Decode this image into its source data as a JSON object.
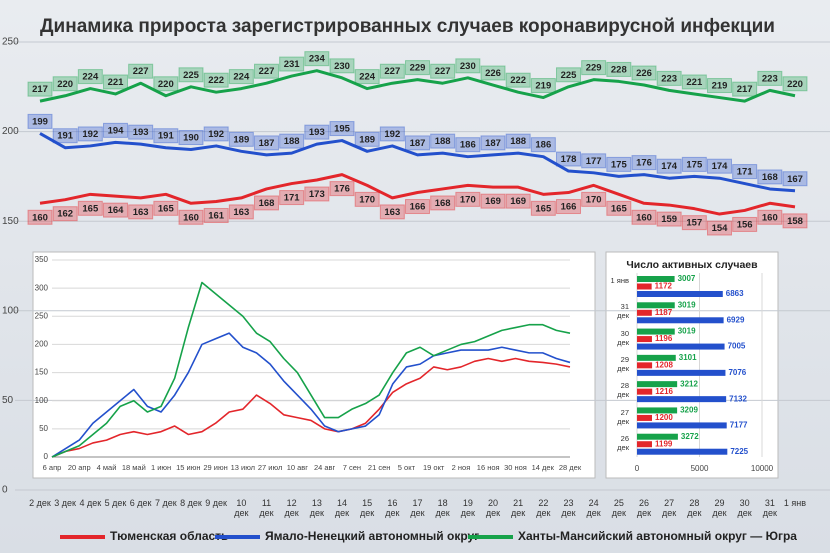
{
  "chart_data": [
    {
      "type": "line",
      "title": "Динамика прироста зарегистрированных случаев коронавирусной инфекции",
      "categories": [
        "2 дек",
        "3 дек",
        "4 дек",
        "5 дек",
        "6 дек",
        "7 дек",
        "8 дек",
        "9 дек",
        "10 дек",
        "11 дек",
        "12 дек",
        "13 дек",
        "14 дек",
        "15 дек",
        "16 дек",
        "17 дек",
        "18 дек",
        "19 дек",
        "20 дек",
        "21 дек",
        "22 дек",
        "23 дек",
        "24 дек",
        "25 дек",
        "26 дек",
        "27 дек",
        "28 дек",
        "29 дек",
        "30 дек",
        "31 дек",
        "1 янв"
      ],
      "series": [
        {
          "name": "Тюменская область",
          "color": "#e3262b",
          "values": [
            160,
            162,
            165,
            164,
            163,
            165,
            160,
            161,
            163,
            168,
            171,
            173,
            176,
            170,
            163,
            166,
            168,
            170,
            169,
            169,
            165,
            166,
            170,
            165,
            160,
            159,
            157,
            154,
            156,
            160,
            158
          ]
        },
        {
          "name": "Ямало-Ненецкий автономный округ",
          "color": "#2350cc",
          "values": [
            199,
            191,
            192,
            194,
            193,
            191,
            190,
            192,
            189,
            187,
            188,
            193,
            195,
            189,
            192,
            187,
            188,
            186,
            187,
            188,
            186,
            178,
            177,
            175,
            176,
            174,
            175,
            174,
            171,
            168,
            167
          ]
        },
        {
          "name": "Ханты-Мансийский автономный округ — Югра",
          "color": "#16a24a",
          "values": [
            217,
            220,
            224,
            221,
            227,
            220,
            225,
            222,
            224,
            227,
            231,
            234,
            230,
            224,
            227,
            229,
            227,
            230,
            226,
            222,
            219,
            225,
            229,
            228,
            226,
            223,
            221,
            219,
            217,
            223,
            220
          ]
        }
      ],
      "ylim": [
        0,
        250
      ],
      "yticks": [
        0,
        50,
        100,
        150,
        200,
        250
      ],
      "grid": true,
      "legend": "bottom"
    },
    {
      "type": "line",
      "categories": [
        "6 апр",
        null,
        "20 апр",
        null,
        "4 май",
        null,
        "18 май",
        null,
        "1 июн",
        null,
        "15 июн",
        null,
        "29 июн",
        null,
        "13 июл",
        null,
        "27 июл",
        null,
        "10 авг",
        null,
        "24 авг",
        null,
        "7 сен",
        null,
        "21 сен",
        null,
        "5 окт",
        null,
        "19 окт",
        null,
        "2 ноя",
        null,
        "16 ноя",
        null,
        "30 ноя",
        null,
        "14 дек",
        null,
        "28 дек"
      ],
      "series": [
        {
          "color": "#e3262b",
          "values": [
            0,
            10,
            15,
            25,
            30,
            40,
            45,
            40,
            45,
            55,
            40,
            45,
            60,
            80,
            85,
            110,
            95,
            75,
            70,
            65,
            50,
            45,
            50,
            60,
            85,
            115,
            130,
            140,
            160,
            155,
            160,
            170,
            175,
            170,
            175,
            170,
            168,
            165,
            160
          ]
        },
        {
          "color": "#2350cc",
          "values": [
            0,
            15,
            30,
            60,
            80,
            100,
            120,
            90,
            80,
            110,
            150,
            200,
            210,
            220,
            195,
            185,
            165,
            135,
            110,
            85,
            55,
            45,
            50,
            55,
            75,
            130,
            160,
            165,
            180,
            185,
            190,
            190,
            190,
            195,
            190,
            185,
            185,
            175,
            168
          ]
        },
        {
          "color": "#16a24a",
          "values": [
            0,
            10,
            20,
            40,
            60,
            90,
            100,
            80,
            90,
            140,
            230,
            310,
            290,
            270,
            250,
            220,
            205,
            175,
            150,
            110,
            70,
            70,
            85,
            95,
            110,
            150,
            185,
            195,
            180,
            190,
            200,
            205,
            215,
            225,
            230,
            235,
            235,
            225,
            220
          ]
        }
      ],
      "ylim": [
        0,
        350
      ],
      "yticks": [
        0,
        50,
        100,
        150,
        200,
        250,
        300,
        350
      ],
      "grid": true
    },
    {
      "type": "bar",
      "orientation": "horizontal",
      "title": "Число активных случаев",
      "categories": [
        "1 янв",
        "31 дек",
        "30 дек",
        "29 дек",
        "28 дек",
        "27 дек",
        "26 дек"
      ],
      "series": [
        {
          "color": "#16a24a",
          "values": [
            3007,
            3019,
            3019,
            3101,
            3212,
            3209,
            3272
          ]
        },
        {
          "color": "#e3262b",
          "values": [
            1172,
            1187,
            1196,
            1208,
            1216,
            1200,
            1199
          ]
        },
        {
          "color": "#2350cc",
          "values": [
            6863,
            6929,
            7005,
            7076,
            7132,
            7177,
            7225
          ]
        }
      ],
      "xlim": [
        0,
        10000
      ],
      "xticks": [
        0,
        5000,
        10000
      ],
      "grid": true
    }
  ]
}
